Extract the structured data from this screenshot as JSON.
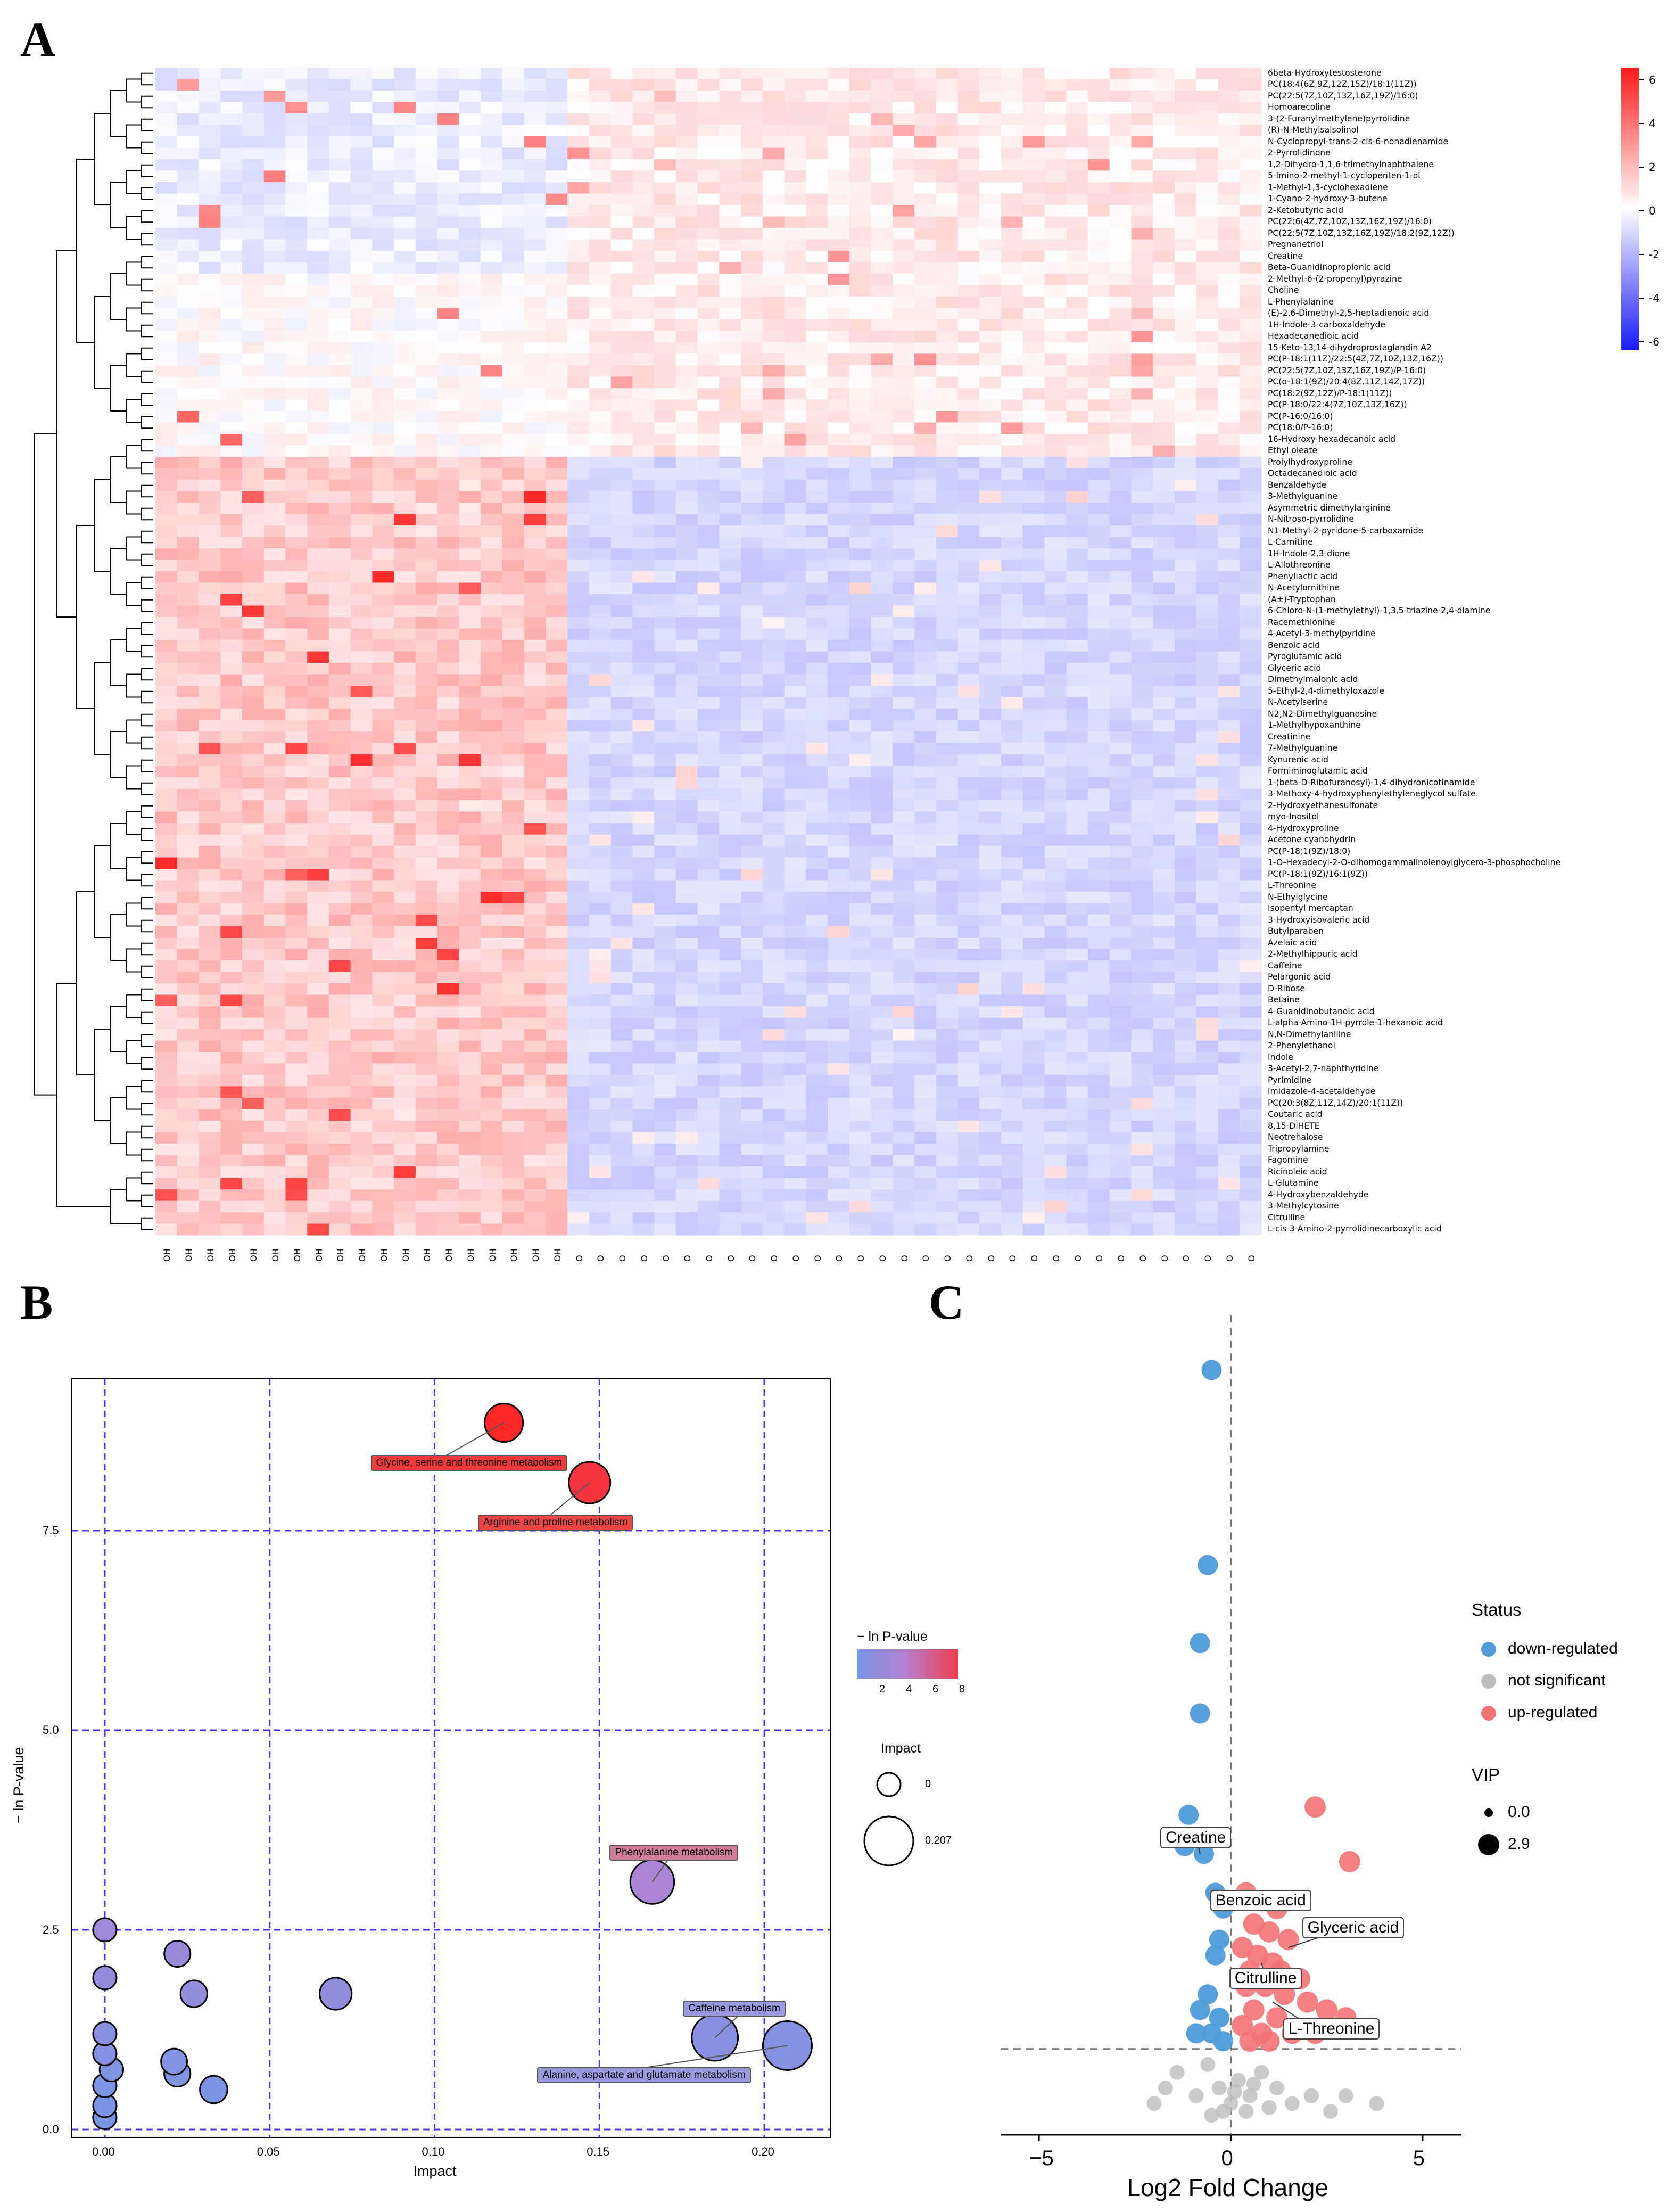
{
  "panels": {
    "a": "A",
    "b": "B",
    "c": "C"
  },
  "heatmap": {
    "row_labels": [
      "6beta-Hydroxytestosterone",
      "PC(18:4(6Z,9Z,12Z,15Z)/18:1(11Z))",
      "PC(22:5(7Z,10Z,13Z,16Z,19Z)/16:0)",
      "Homoarecoline",
      "3-(2-Furanylmethylene)pyrrolidine",
      "(R)-N-Methylsalsolinol",
      "N-Cyclopropyl-trans-2-cis-6-nonadienamide",
      "2-Pyrrolidinone",
      "1,2-Dihydro-1,1,6-trimethylnaphthalene",
      "5-Imino-2-methyl-1-cyclopenten-1-ol",
      "1-Methyl-1,3-cyclohexadiene",
      "1-Cyano-2-hydroxy-3-butene",
      "2-Ketobutyric acid",
      "PC(22:6(4Z,7Z,10Z,13Z,16Z,19Z)/16:0)",
      "PC(22:5(7Z,10Z,13Z,16Z,19Z)/18:2(9Z,12Z))",
      "Pregnanetriol",
      "Creatine",
      "Beta-Guanidinopropionic acid",
      "2-Methyl-6-(2-propenyl)pyrazine",
      "Choline",
      "L-Phenylalanine",
      "(E)-2,6-Dimethyl-2,5-heptadienoic acid",
      "1H-Indole-3-carboxaldehyde",
      "Hexadecanedioic acid",
      "15-Keto-13,14-dihydroprostaglandin A2",
      "PC(P-18:1(11Z)/22:5(4Z,7Z,10Z,13Z,16Z))",
      "PC(22:5(7Z,10Z,13Z,16Z,19Z)/P-16:0)",
      "PC(o-18:1(9Z)/20:4(8Z,11Z,14Z,17Z))",
      "PC(18:2(9Z,12Z)/P-18:1(11Z))",
      "PC(P-18:0/22:4(7Z,10Z,13Z,16Z))",
      "PC(P-16:0/16:0)",
      "PC(18:0/P-16:0)",
      "16-Hydroxy hexadecanoic acid",
      "Ethyl oleate",
      "Prolylhydroxyproline",
      "Octadecanedioic acid",
      "Benzaldehyde",
      "3-Methylguanine",
      "Asymmetric dimethylarginine",
      "N-Nitroso-pyrrolidine",
      "N1-Methyl-2-pyridone-5-carboxamide",
      "L-Carnitine",
      "1H-Indole-2,3-dione",
      "L-Allothreonine",
      "Phenyllactic acid",
      "N-Acetylornithine",
      "(A±)-Tryptophan",
      "6-Chloro-N-(1-methylethyl)-1,3,5-triazine-2,4-diamine",
      "Racemethionine",
      "4-Acetyl-3-methylpyridine",
      "Benzoic acid",
      "Pyroglutamic acid",
      "Glyceric acid",
      "Dimethylmalonic acid",
      "5-Ethyl-2,4-dimethyloxazole",
      "N-Acetylserine",
      "N2,N2-Dimethylguanosine",
      "1-Methylhypoxanthine",
      "Creatinine",
      "7-Methylguanine",
      "Kynurenic acid",
      "Formiminoglutamic acid",
      "1-(beta-D-Ribofuranosyl)-1,4-dihydronicotinamide",
      "3-Methoxy-4-hydroxyphenylethyleneglycol sulfate",
      "2-Hydroxyethanesulfonate",
      "myo-Inositol",
      "4-Hydroxyproline",
      "Acetone cyanohydrin",
      "PC(P-18:1(9Z)/18:0)",
      "1-O-Hexadecyl-2-O-dihomogammalinolenoylglycero-3-phosphocholine",
      "PC(P-18:1(9Z)/16:1(9Z))",
      "L-Threonine",
      "N-Ethylglycine",
      "Isopentyl mercaptan",
      "3-Hydroxyisovaleric acid",
      "Butylparaben",
      "Azelaic acid",
      "2-Methylhippuric acid",
      "Caffeine",
      "Pelargonic acid",
      "D-Ribose",
      "Betaine",
      "4-Guanidinobutanoic acid",
      "L-alpha-Amino-1H-pyrrole-1-hexanoic acid",
      "N,N-Dimethylaniline",
      "2-Phenylethanol",
      "Indole",
      "3-Acetyl-2,7-naphthyridine",
      "Pyrimidine",
      "Imidazole-4-acetaldehyde",
      "PC(20:3(8Z,11Z,14Z)/20:1(11Z))",
      "Coutaric acid",
      "8,15-DiHETE",
      "Neotrehalose",
      "Tripropylamine",
      "Fagomine",
      "Ricinoleic acid",
      "L-Glutamine",
      "4-Hydroxybenzaldehyde",
      "3-Methylcytosine",
      "Citrulline",
      "L-cis-3-Amino-2-pyrrolidinecarboxylic acid"
    ],
    "col_labels_group1": "OH",
    "col_labels_group2": "O",
    "n_group1": 19,
    "n_group2": 32,
    "colorbar_ticks": [
      "6",
      "4",
      "2",
      "0",
      "-2",
      "-4",
      "-6"
    ]
  },
  "bubble": {
    "xlabel": "Impact",
    "ylabel": "− ln P-value",
    "x_ticks": [
      "0.00",
      "0.05",
      "0.10",
      "0.15",
      "0.20"
    ],
    "y_ticks": [
      "0.0",
      "2.5",
      "5.0",
      "7.5"
    ],
    "legend_color_title": "− ln P-value",
    "legend_color_ticks": [
      "2",
      "4",
      "6",
      "8"
    ],
    "legend_size_title": "Impact",
    "legend_size_ticks": [
      "0",
      "0.207"
    ],
    "chart_data": {
      "type": "scatter",
      "xlim": [
        -0.01,
        0.22
      ],
      "ylim": [
        -0.1,
        9.4
      ],
      "points": [
        {
          "x": 0.121,
          "y": 8.85,
          "name": "Glycine, serine and threonine metabolism"
        },
        {
          "x": 0.147,
          "y": 8.1,
          "name": "Arginine and proline metabolism"
        },
        {
          "x": 0.166,
          "y": 3.1,
          "name": "Phenylalanine metabolism"
        },
        {
          "x": 0.185,
          "y": 1.15,
          "name": "Caffeine metabolism"
        },
        {
          "x": 0.207,
          "y": 1.05,
          "name": "Alanine, aspartate and glutamate metabolism"
        },
        {
          "x": 0.07,
          "y": 1.7,
          "name": ""
        },
        {
          "x": 0.022,
          "y": 2.2,
          "name": ""
        },
        {
          "x": 0.027,
          "y": 1.7,
          "name": ""
        },
        {
          "x": 0.0,
          "y": 2.5,
          "name": ""
        },
        {
          "x": 0.0,
          "y": 1.9,
          "name": ""
        },
        {
          "x": 0.021,
          "y": 0.85,
          "name": ""
        },
        {
          "x": 0.022,
          "y": 0.7,
          "name": ""
        },
        {
          "x": 0.033,
          "y": 0.5,
          "name": ""
        },
        {
          "x": 0.0,
          "y": 1.2,
          "name": ""
        },
        {
          "x": 0.0,
          "y": 0.95,
          "name": ""
        },
        {
          "x": 0.002,
          "y": 0.75,
          "name": ""
        },
        {
          "x": 0.0,
          "y": 0.55,
          "name": ""
        },
        {
          "x": 0.0,
          "y": 0.3,
          "name": ""
        },
        {
          "x": 0.0,
          "y": 0.15,
          "name": ""
        }
      ]
    }
  },
  "volcano": {
    "xlabel": "Log2 Fold Change",
    "x_ticks": [
      "−5",
      "0",
      "5"
    ],
    "legend_status_title": "Status",
    "legend_status_items": [
      {
        "label": "down-regulated",
        "color": "#4f9bd9"
      },
      {
        "label": "not significant",
        "color": "#bdbdbd"
      },
      {
        "label": "up-regulated",
        "color": "#f27373"
      }
    ],
    "legend_vip_title": "VIP",
    "legend_vip_items": [
      "0.0",
      "2.9"
    ],
    "labels": [
      "Creatine",
      "Benzoic acid",
      "Glyceric acid",
      "Citrulline",
      "L-Threonine"
    ],
    "chart_data": {
      "type": "scatter",
      "xlim": [
        -6,
        6
      ],
      "down": [
        [
          -0.5,
          14.5
        ],
        [
          -0.6,
          12.0
        ],
        [
          -0.8,
          11.0
        ],
        [
          -0.8,
          10.1
        ],
        [
          -1.1,
          8.8
        ],
        [
          -1.2,
          8.4
        ],
        [
          -0.7,
          8.3
        ],
        [
          -0.4,
          7.8
        ],
        [
          -0.2,
          7.6
        ],
        [
          -0.3,
          7.2
        ],
        [
          -0.4,
          7.0
        ],
        [
          -0.6,
          6.5
        ],
        [
          -0.8,
          6.3
        ],
        [
          -0.3,
          6.2
        ],
        [
          -0.5,
          6.0
        ],
        [
          -0.9,
          6.0
        ],
        [
          -0.2,
          5.9
        ]
      ],
      "up": [
        [
          2.2,
          8.9
        ],
        [
          3.1,
          8.2
        ],
        [
          0.4,
          7.8
        ],
        [
          0.8,
          7.7
        ],
        [
          1.2,
          7.6
        ],
        [
          0.6,
          7.4
        ],
        [
          1.0,
          7.3
        ],
        [
          1.5,
          7.2
        ],
        [
          0.3,
          7.1
        ],
        [
          0.7,
          7.0
        ],
        [
          1.1,
          6.9
        ],
        [
          0.5,
          6.8
        ],
        [
          1.3,
          6.8
        ],
        [
          1.8,
          6.7
        ],
        [
          0.4,
          6.6
        ],
        [
          0.9,
          6.6
        ],
        [
          1.4,
          6.5
        ],
        [
          2.0,
          6.4
        ],
        [
          0.6,
          6.3
        ],
        [
          1.2,
          6.2
        ],
        [
          2.5,
          6.3
        ],
        [
          3.0,
          6.2
        ],
        [
          0.3,
          6.1
        ],
        [
          0.8,
          6.0
        ],
        [
          1.6,
          6.0
        ],
        [
          2.2,
          6.0
        ],
        [
          1.0,
          5.9
        ],
        [
          0.5,
          5.9
        ]
      ],
      "ns": [
        [
          -1.4,
          5.5
        ],
        [
          -0.9,
          5.2
        ],
        [
          -0.6,
          5.6
        ],
        [
          -0.3,
          5.3
        ],
        [
          0.0,
          5.1
        ],
        [
          0.2,
          5.4
        ],
        [
          0.5,
          5.2
        ],
        [
          0.8,
          5.5
        ],
        [
          1.2,
          5.3
        ],
        [
          1.6,
          5.1
        ],
        [
          2.1,
          5.2
        ],
        [
          2.6,
          5.0
        ],
        [
          -2.0,
          5.1
        ],
        [
          -1.7,
          5.3
        ],
        [
          3.0,
          5.2
        ],
        [
          3.8,
          5.1
        ],
        [
          -0.2,
          5.0
        ],
        [
          0.1,
          5.25
        ],
        [
          0.4,
          5.0
        ],
        [
          -0.5,
          4.95
        ],
        [
          0.6,
          5.35
        ],
        [
          1.0,
          5.05
        ]
      ]
    }
  }
}
